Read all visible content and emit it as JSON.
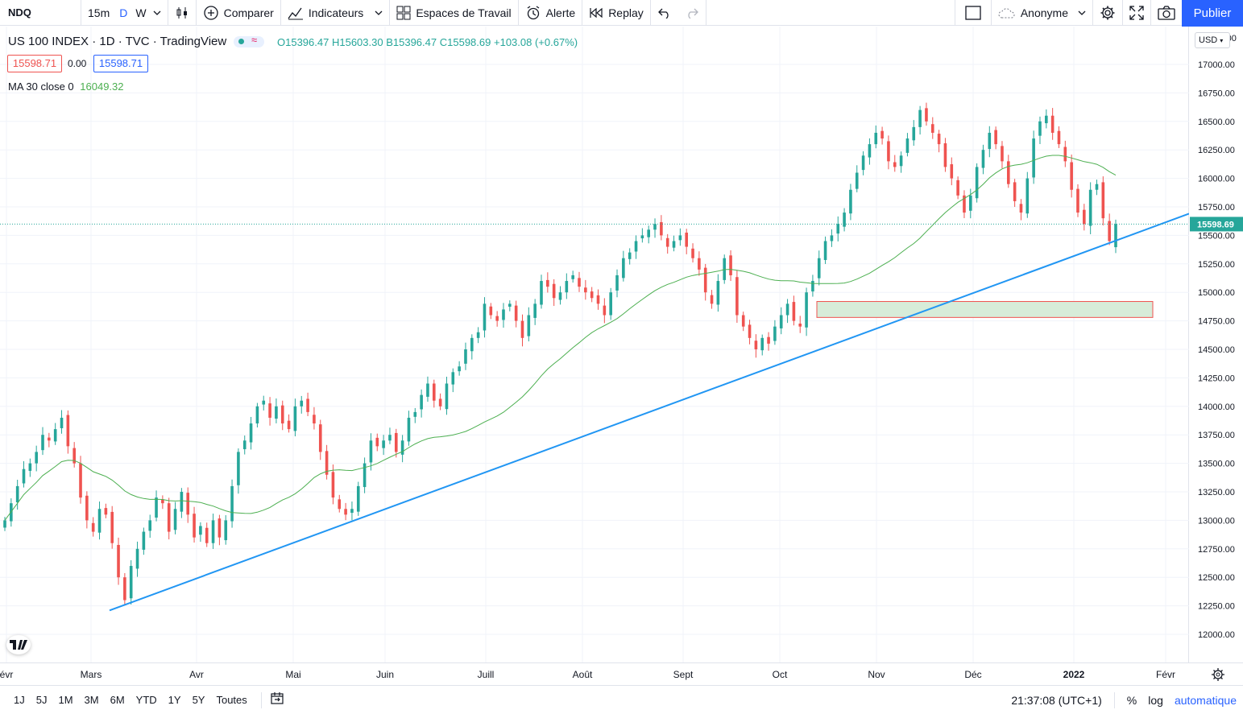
{
  "toolbar": {
    "symbol": "NDQ",
    "intervals": [
      "15m",
      "D",
      "W"
    ],
    "compare_label": "Comparer",
    "indicators_label": "Indicateurs",
    "workspaces_label": "Espaces de Travail",
    "alert_label": "Alerte",
    "replay_label": "Replay",
    "user_label": "Anonyme",
    "publish_label": "Publier"
  },
  "legend": {
    "title": "US 100 INDEX · 1D · TVC · TradingView",
    "open": "O15396.47",
    "high": "H15603.30",
    "low": "B15396.47",
    "close": "C15598.69",
    "change": "+103.08 (+0.67%)",
    "bid": "15598.71",
    "spread": "0.00",
    "ask": "15598.71",
    "ma_label": "MA 30 close 0",
    "ma_value": "16049.32"
  },
  "price_axis": {
    "currency": "USD",
    "top_label": "17250.00",
    "ticks": [
      "17000.00",
      "16750.00",
      "16500.00",
      "16250.00",
      "16000.00",
      "15750.00",
      "15500.00",
      "15250.00",
      "15000.00",
      "14750.00",
      "14500.00",
      "14250.00",
      "14000.00",
      "13750.00",
      "13500.00",
      "13250.00",
      "13000.00",
      "12750.00",
      "12500.00",
      "12250.00",
      "12000.00"
    ],
    "last_price": "15598.69"
  },
  "time_axis": {
    "labels": [
      "évr",
      "Mars",
      "Avr",
      "Mai",
      "Juin",
      "Juill",
      "Août",
      "Sept",
      "Oct",
      "Nov",
      "Déc",
      "2022",
      "Févr"
    ]
  },
  "bottom": {
    "ranges": [
      "1J",
      "5J",
      "1M",
      "3M",
      "6M",
      "YTD",
      "1Y",
      "5Y",
      "Toutes"
    ],
    "clock": "21:37:08 (UTC+1)",
    "percent": "%",
    "log": "log",
    "auto": "automatique"
  },
  "colors": {
    "up": "#26a69a",
    "down": "#ef5350",
    "ma": "#4caf50",
    "trendline": "#2196f3",
    "zone_fill": "#d7ecd9",
    "zone_border": "#ef5350",
    "accent": "#2962ff"
  },
  "chart_data": {
    "type": "candlestick",
    "ylim": [
      11850,
      17350
    ],
    "x_labels": [
      "Mars",
      "Avr",
      "Mai",
      "Juin",
      "Juill",
      "Août",
      "Sept",
      "Oct",
      "Nov",
      "Déc",
      "2022",
      "Févr"
    ],
    "candles_summary": {
      "start_close": 13000,
      "low_march": 12300,
      "high_november": 16760,
      "last": {
        "open": 15396.47,
        "high": 15603.3,
        "low": 15396.47,
        "close": 15598.69
      }
    },
    "closes": [
      13000,
      13150,
      13300,
      13450,
      13500,
      13600,
      13750,
      13700,
      13800,
      13900,
      13650,
      13500,
      13200,
      13000,
      12900,
      13100,
      13050,
      12800,
      12500,
      12300,
      12600,
      12750,
      12900,
      13000,
      13200,
      13150,
      12900,
      13100,
      13250,
      13050,
      12850,
      12950,
      12800,
      13000,
      12850,
      13000,
      13300,
      13600,
      13700,
      13850,
      14000,
      14050,
      13900,
      14000,
      13850,
      13800,
      14000,
      14050,
      13950,
      13850,
      13600,
      13400,
      13200,
      13100,
      13050,
      13100,
      13300,
      13500,
      13700,
      13650,
      13700,
      13750,
      13600,
      13700,
      13900,
      13950,
      14100,
      14200,
      14050,
      14000,
      14200,
      14300,
      14350,
      14500,
      14600,
      14650,
      14900,
      14800,
      14750,
      14850,
      14900,
      14750,
      14600,
      14800,
      14900,
      15100,
      15050,
      14950,
      15000,
      15100,
      15150,
      15050,
      15000,
      14950,
      14900,
      14800,
      15000,
      15150,
      15300,
      15350,
      15450,
      15500,
      15550,
      15600,
      15500,
      15400,
      15450,
      15500,
      15400,
      15300,
      15200,
      15000,
      14900,
      15100,
      15300,
      15150,
      14800,
      14700,
      14600,
      14500,
      14600,
      14550,
      14700,
      14800,
      14900,
      14750,
      14700,
      15000,
      15100,
      15300,
      15450,
      15500,
      15600,
      15700,
      15900,
      16050,
      16200,
      16300,
      16400,
      16350,
      16150,
      16100,
      16200,
      16350,
      16450,
      16600,
      16500,
      16400,
      16300,
      16100,
      16000,
      15850,
      15700,
      15850,
      16100,
      16250,
      16400,
      16300,
      16150,
      15950,
      15800,
      15700,
      16000,
      16350,
      16500,
      16550,
      16400,
      16300,
      16150,
      15900,
      15700,
      15600,
      15900,
      15950,
      15650,
      15450,
      15600
    ],
    "ma30_note": "MA 30 close",
    "trendline": [
      [
        0,
        12210
      ],
      [
        1,
        15690
      ]
    ],
    "zone": {
      "top": 14920,
      "bottom": 14780
    }
  }
}
